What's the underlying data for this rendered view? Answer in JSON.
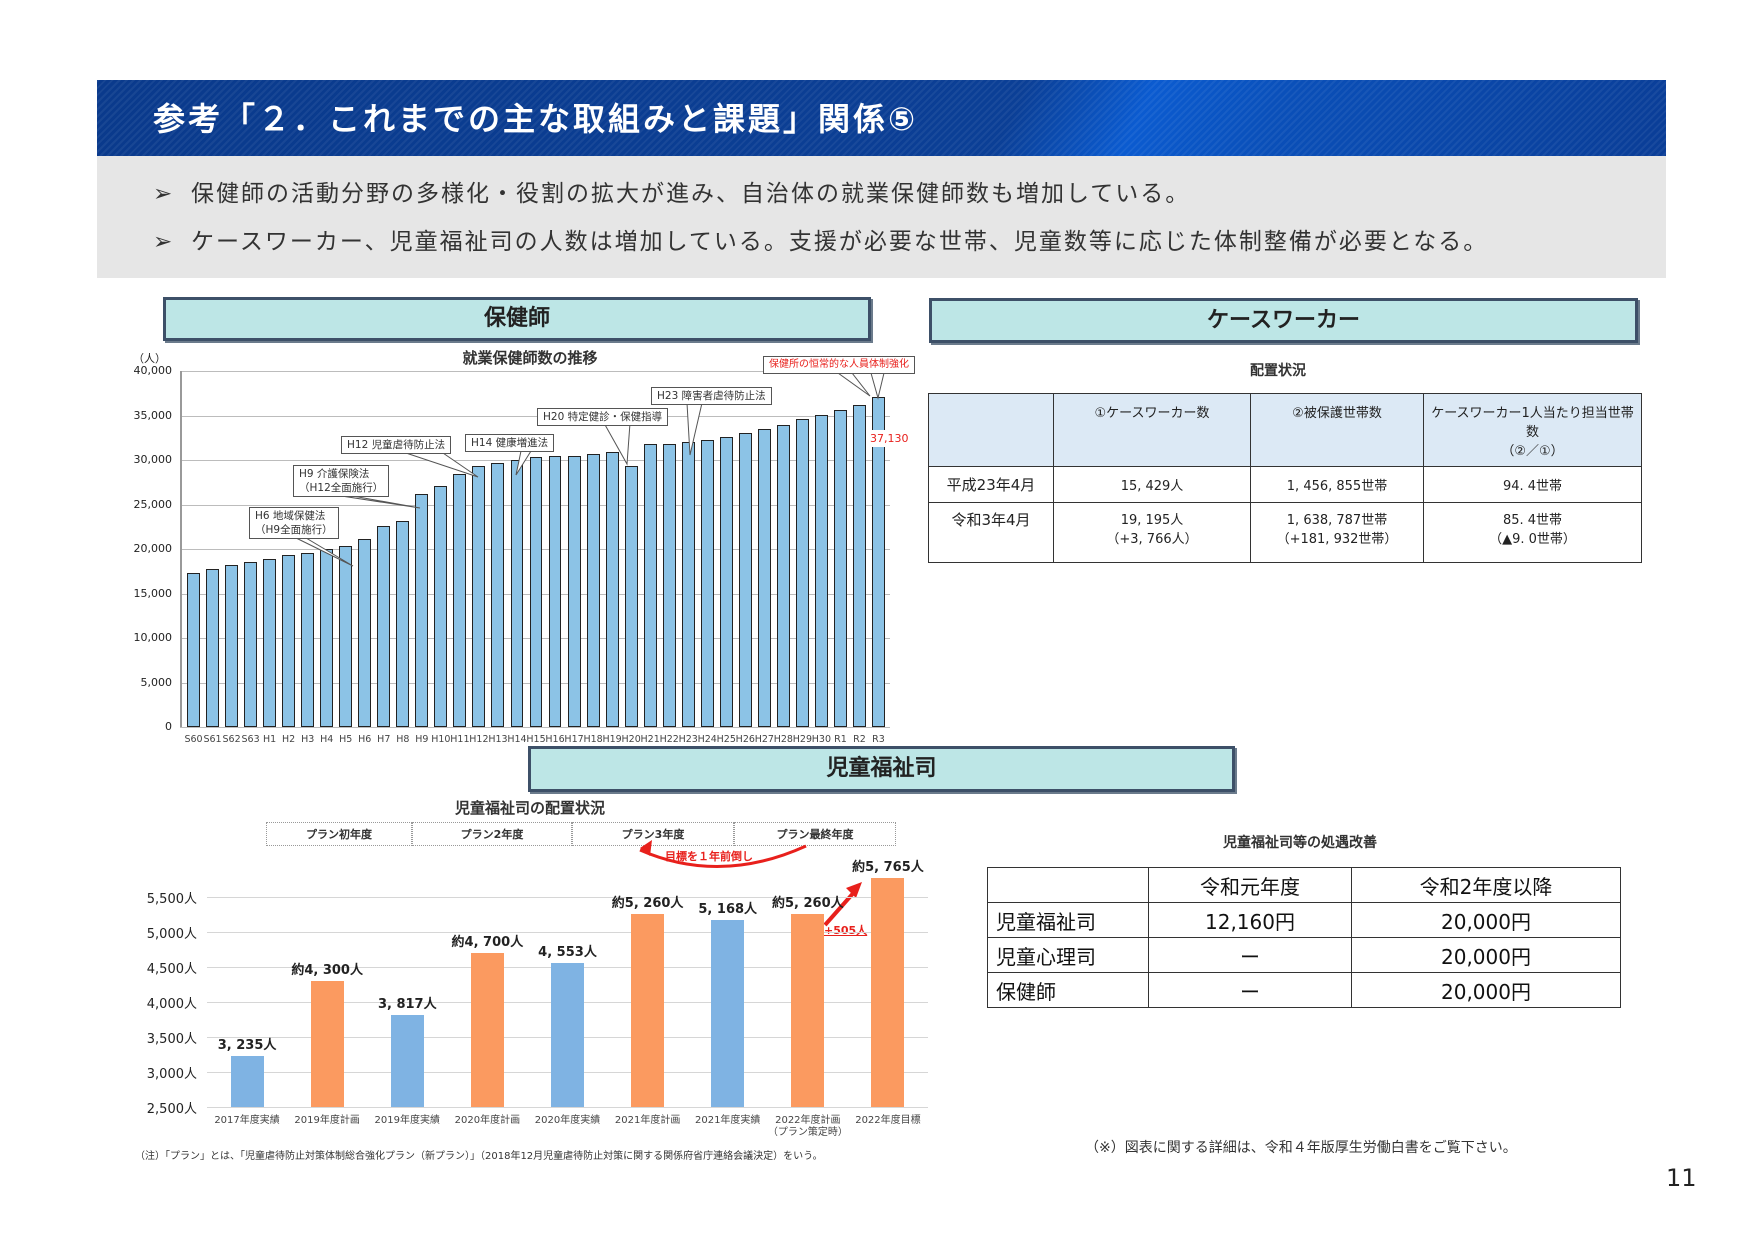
{
  "header": {
    "title": "参考「２．これまでの主な取組みと課題」関係⑤"
  },
  "bullets": [
    "保健師の活動分野の多様化・役割の拡大が進み、自治体の就業保健師数も増加している。",
    "ケースワーカー、児童福祉司の人数は増加している。支援が必要な世帯、児童数等に応じた体制整備が必要となる。"
  ],
  "bullet_icon": "arrowhead-bullet-icon",
  "sections": {
    "nurse": {
      "banner": "保健師"
    },
    "caseworker": {
      "banner": "ケースワーカー"
    },
    "child_welfare": {
      "banner": "児童福祉司"
    }
  },
  "nurse_chart": {
    "unit": "（人）",
    "last_value_label": "37,130",
    "callouts": {
      "h6": [
        "H6  地域保健法",
        "（H9全面施行）"
      ],
      "h9": [
        "H9  介護保険法",
        "（H12全面施行）"
      ],
      "h12": "H12  児童虐待防止法",
      "h14": "H14  健康増進法",
      "h20": "H20  特定健診・保健指導",
      "h23": "H23  障害者虐待防止法",
      "r3": "保健所の恒常的な人員体制強化"
    }
  },
  "caseworker_table": {
    "title": "配置状況",
    "headers": [
      "",
      "①ケースワーカー数",
      "②被保護世帯数",
      "ケースワーカー1人当たり担当世帯数",
      "（②／①）"
    ],
    "rows": [
      {
        "label": "平成23年4月",
        "c1": "15, 429人",
        "c1b": "",
        "c2": "1, 456, 855世帯",
        "c2b": "",
        "c3": "94. 4世帯",
        "c3b": ""
      },
      {
        "label": "令和3年4月",
        "c1": "19, 195人",
        "c1b": "（+3, 766人）",
        "c2": "1, 638, 787世帯",
        "c2b": "（+181, 932世帯）",
        "c3": "85. 4世帯",
        "c3b": "（▲9. 0世帯）"
      }
    ]
  },
  "child_chart": {
    "plan_headers": [
      "プラン初年度",
      "プラン2年度",
      "プラン3年度",
      "プラン最終年度"
    ],
    "advance_note": "目標を１年前倒し",
    "increase_note": "+505人",
    "footnote": "（注）「プラン」とは、「児童虐待防止対策体制総合強化プラン（新プラン）」（2018年12月児童虐待防止対策に関する関係府省庁連絡会議決定）をいう。"
  },
  "salary_table": {
    "title": "児童福祉司等の処遇改善",
    "headers": [
      "",
      "令和元年度",
      "令和2年度以降"
    ],
    "rows": [
      [
        "児童福祉司",
        "12,160円",
        "20,000円"
      ],
      [
        "児童心理司",
        "ー",
        "20,000円"
      ],
      [
        "保健師",
        "ー",
        "20,000円"
      ]
    ]
  },
  "footer": {
    "note": "（※）図表に関する詳細は、令和４年版厚生労働白書をご覧下さい。",
    "page_number": "11"
  },
  "colors": {
    "header_blue": "#0b3f96",
    "banner_fill": "#bde6e6",
    "nurse_bar": "#8cc3e6",
    "actual_bar": "#7fb3e3",
    "plan_bar": "#fb9a60",
    "accent_red": "#e8201c"
  },
  "chart_data": [
    {
      "type": "bar",
      "title": "就業保健師数の推移",
      "ylabel": "（人）",
      "xlabel": "",
      "ylim": [
        0,
        40000
      ],
      "yticks": [
        "0",
        "5,000",
        "10,000",
        "15,000",
        "20,000",
        "25,000",
        "30,000",
        "35,000",
        "40,000"
      ],
      "grid": true,
      "categories": [
        "S60",
        "S61",
        "S62",
        "S63",
        "H1",
        "H2",
        "H3",
        "H4",
        "H5",
        "H6",
        "H7",
        "H8",
        "H9",
        "H10",
        "H11",
        "H12",
        "H13",
        "H14",
        "H15",
        "H16",
        "H17",
        "H18",
        "H19",
        "H20",
        "H21",
        "H22",
        "H23",
        "H24",
        "H25",
        "H26",
        "H27",
        "H28",
        "H29",
        "H30",
        "R1",
        "R2",
        "R3"
      ],
      "values": [
        17300,
        17800,
        18200,
        18500,
        18900,
        19300,
        19600,
        20000,
        20300,
        21100,
        22600,
        23200,
        26200,
        27100,
        28400,
        29300,
        29700,
        30000,
        30300,
        30400,
        30400,
        30700,
        30900,
        29300,
        31800,
        31800,
        32000,
        32300,
        32600,
        33000,
        33500,
        33900,
        34600,
        35100,
        35600,
        36200,
        37130
      ],
      "annotations": [
        {
          "at": "H6",
          "text": "H6 地域保健法（H9全面施行）"
        },
        {
          "at": "H9",
          "text": "H9 介護保険法（H12全面施行）"
        },
        {
          "at": "H12",
          "text": "H12 児童虐待防止法"
        },
        {
          "at": "H14",
          "text": "H14 健康増進法"
        },
        {
          "at": "H20",
          "text": "H20 特定健診・保健指導"
        },
        {
          "at": "H23",
          "text": "H23 障害者虐待防止法"
        },
        {
          "at": "R3",
          "text": "保健所の恒常的な人員体制強化",
          "value_label": "37,130"
        }
      ]
    },
    {
      "type": "bar",
      "title": "児童福祉司の配置状況",
      "ylabel": "",
      "xlabel": "",
      "ylim": [
        2500,
        5500
      ],
      "yticks": [
        "2,500人",
        "3,000人",
        "3,500人",
        "4,000人",
        "4,500人",
        "5,000人",
        "5,500人"
      ],
      "grid": true,
      "categories": [
        "2017年度実績",
        "2019年度計画",
        "2019年度実績",
        "2020年度計画",
        "2020年度実績",
        "2021年度計画",
        "2021年度実績",
        "2022年度計画（プラン策定時）",
        "2022年度目標"
      ],
      "values": [
        3235,
        4300,
        3817,
        4700,
        4553,
        5260,
        5168,
        5260,
        5765
      ],
      "value_labels": [
        "3, 235人",
        "約4, 300人",
        "3, 817人",
        "約4, 700人",
        "4, 553人",
        "約5, 260人",
        "5, 168人",
        "約5, 260人",
        "約5, 765人"
      ],
      "series_kind": [
        "actual",
        "plan",
        "actual",
        "plan",
        "actual",
        "plan",
        "actual",
        "plan",
        "plan"
      ],
      "legend": [],
      "annotations": [
        "目標を１年前倒し",
        "+505人"
      ]
    }
  ]
}
